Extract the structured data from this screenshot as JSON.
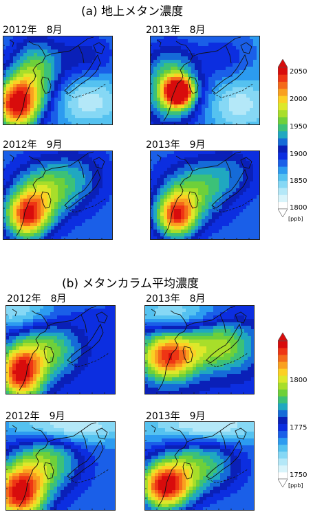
{
  "section_a": {
    "title": "(a) 地上メタン濃度",
    "panels": [
      {
        "label": "2012年　8月",
        "hotspot_ppb": 2030
      },
      {
        "label": "2013年　8月",
        "hotspot_ppb": 2050
      },
      {
        "label": "2012年　9月",
        "hotspot_ppb": 1990
      },
      {
        "label": "2013年　9月",
        "hotspot_ppb": 1990
      }
    ],
    "colorbar": {
      "ticks": [
        "2050",
        "2000",
        "1950",
        "1900",
        "1850",
        "1800"
      ],
      "unit": "[ppb]",
      "range": [
        1800,
        2050
      ]
    }
  },
  "section_b": {
    "title": "(b) メタンカラム平均濃度",
    "panels": [
      {
        "label": "2012年　8月",
        "hotspot_ppb": 1810
      },
      {
        "label": "2013年　8月",
        "hotspot_ppb": 1805
      },
      {
        "label": "2012年　9月",
        "hotspot_ppb": 1815
      },
      {
        "label": "2013年　9月",
        "hotspot_ppb": 1815
      }
    ],
    "colorbar": {
      "ticks": [
        "1800",
        "1775",
        "1750"
      ],
      "unit": "[ppb]",
      "range": [
        1750,
        1820
      ]
    }
  },
  "colors": {
    "scale": [
      "#ffffff",
      "#d8f4fb",
      "#b4e8f8",
      "#86d8f5",
      "#55c2f0",
      "#2c9bf0",
      "#1a5fe8",
      "#0c2ee0",
      "#0a20b8",
      "#156bd8",
      "#20a8c0",
      "#3cc178",
      "#6ed03a",
      "#a8de2a",
      "#dde82a",
      "#fcd024",
      "#f9a020",
      "#f46a1a",
      "#ee3514",
      "#d80c0c"
    ]
  }
}
